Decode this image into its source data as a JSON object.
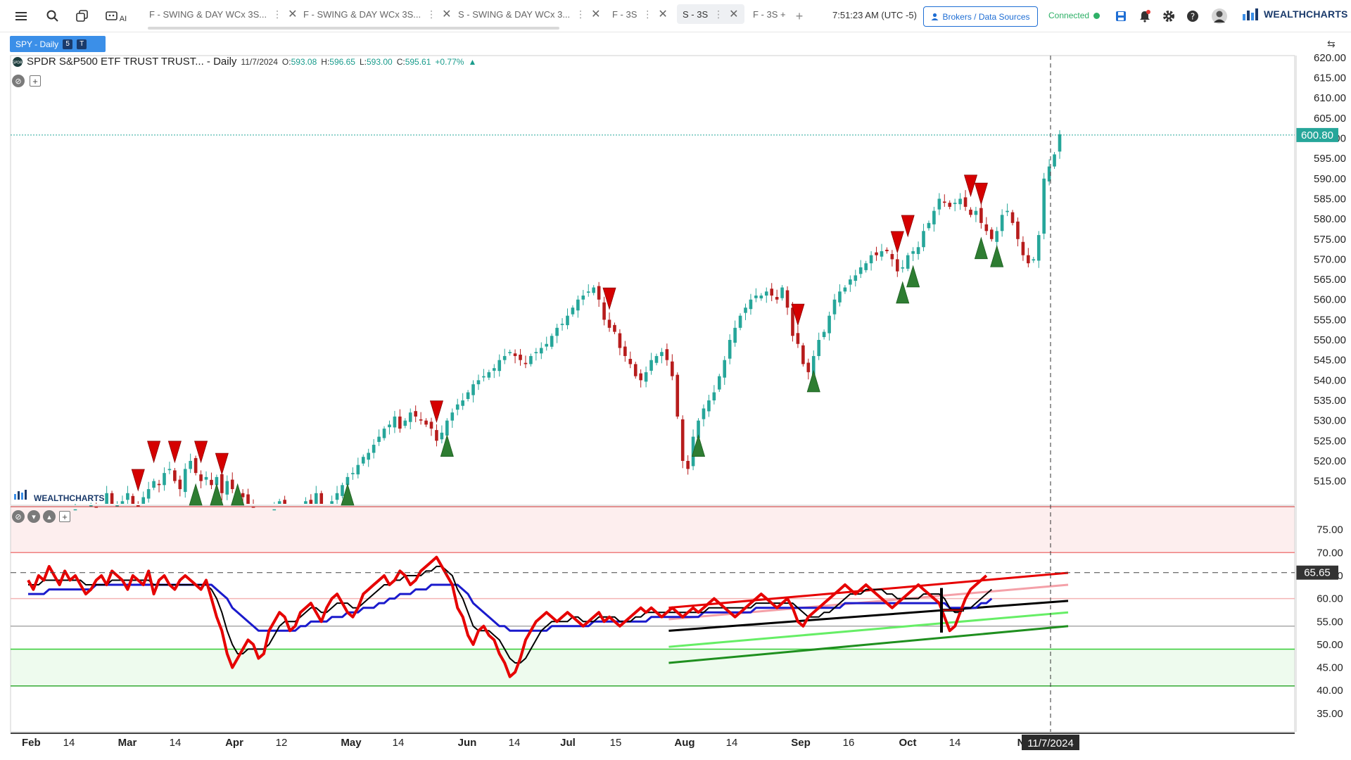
{
  "toolbar": {
    "tabs": [
      {
        "label": "F - SWING & DAY WCx 3S...",
        "active": false
      },
      {
        "label": "F - SWING & DAY WCx 3S...",
        "active": false
      },
      {
        "label": "S - SWING & DAY WCx 3...",
        "active": false
      },
      {
        "label": "F - 3S",
        "active": false
      },
      {
        "label": "S - 3S",
        "active": true
      },
      {
        "label": "F - 3S +",
        "active": false
      }
    ],
    "ai_label": "AI",
    "clock": "7:51:23 AM  (UTC -5)",
    "brokers_label": "Brokers / Data Sources",
    "connection": "Connected",
    "brand": "WEALTHCHARTS"
  },
  "symbol_badge": {
    "label": "SPY - Daily",
    "badge1": "5",
    "badge2": "T"
  },
  "legend": {
    "name": "SPDR S&P500 ETF TRUST TRUST... - Daily",
    "date": "11/7/2024",
    "o_label": "O:",
    "o": "593.08",
    "h_label": "H:",
    "h": "596.65",
    "l_label": "L:",
    "l": "593.00",
    "c_label": "C:",
    "c": "595.61",
    "change": "+0.77%"
  },
  "watermark": "WEALTHCHARTS",
  "colors": {
    "up": "#26a69a",
    "down": "#b71c1c",
    "sell_arrow": "#d50000",
    "buy_arrow": "#2e7d32",
    "rsi": "#e60000",
    "signal_fast": "#000000",
    "signal_slow": "#1a1acc",
    "upper_zone": "#fdeeee",
    "lower_zone": "#eefbee",
    "price_tag": "#26a69a"
  },
  "chart_data": [
    {
      "type": "candlestick",
      "title": "SPDR S&P500 ETF TRUST TRUST... - Daily",
      "x_labels": [
        "Feb",
        "14",
        "Mar",
        "14",
        "Apr",
        "12",
        "May",
        "14",
        "Jun",
        "14",
        "Jul",
        "15",
        "Aug",
        "14",
        "Sep",
        "16",
        "Oct",
        "14",
        "N"
      ],
      "y_ticks": [
        515,
        520,
        525,
        530,
        535,
        540,
        545,
        550,
        555,
        560,
        565,
        570,
        575,
        580,
        585,
        590,
        595,
        600,
        605,
        610,
        615,
        620
      ],
      "ylim": [
        509,
        620.5
      ],
      "last_price": 600.8,
      "crosshair_date": "11/7/2024",
      "series": [
        {
          "name": "SPY",
          "close": [
            501,
            503,
            502,
            505,
            500,
            498,
            499,
            497,
            504,
            508,
            507,
            506,
            509,
            505,
            503,
            512,
            508,
            509,
            510,
            512,
            509,
            508,
            511,
            513,
            515,
            514,
            517,
            518,
            515,
            513,
            518,
            520,
            517,
            515,
            516,
            514,
            516,
            512,
            515,
            513,
            512,
            511,
            509,
            507,
            505,
            505,
            506,
            508,
            510,
            507,
            504,
            505,
            508,
            510,
            509,
            512,
            507,
            503,
            510,
            512,
            514,
            516,
            517,
            519,
            521,
            522,
            524,
            526,
            528,
            529,
            531,
            528,
            530,
            532,
            531,
            530,
            529,
            528,
            525,
            527,
            530,
            532,
            534,
            535,
            537,
            539,
            540,
            541,
            542,
            543,
            545,
            546,
            547,
            546,
            545,
            544,
            546,
            547,
            548,
            549,
            551,
            553,
            554,
            556,
            558,
            560,
            561,
            562,
            563,
            560,
            555,
            553,
            552,
            548,
            546,
            544,
            541,
            540,
            542,
            545,
            546,
            547,
            545,
            541,
            531,
            520,
            518,
            526,
            530,
            533,
            535,
            537,
            541,
            545,
            550,
            553,
            556,
            558,
            560,
            561,
            561,
            562,
            561,
            560,
            563,
            558,
            551,
            549,
            544,
            542,
            546,
            550,
            552,
            556,
            560,
            562,
            563,
            565,
            566,
            568,
            569,
            571,
            571,
            572,
            572,
            570,
            567,
            568,
            571,
            572,
            573,
            577,
            579,
            582,
            585,
            584,
            583,
            584,
            585,
            583,
            581,
            582,
            579,
            577,
            575,
            577,
            581,
            582,
            579,
            575,
            571,
            569,
            570,
            576,
            590,
            593,
            596,
            601
          ]
        }
      ],
      "sell_signals": [
        "Mar 4",
        "Mar 8",
        "Mar 14",
        "Mar 22",
        "Mar 28",
        "May 28",
        "Jul 17",
        "Sep 6",
        "Oct 7",
        "Oct 10",
        "Oct 28",
        "Nov 1"
      ],
      "buy_signals": [
        "Mar 20",
        "Mar 26",
        "Apr 3",
        "May 2",
        "May 31",
        "Aug 12",
        "Sep 10",
        "Oct 9",
        "Oct 11",
        "Oct 31",
        "Nov 6"
      ]
    },
    {
      "type": "line",
      "title": "RSI",
      "y_ticks": [
        35,
        40,
        45,
        50,
        55,
        60,
        65,
        70,
        75
      ],
      "ylim": [
        31,
        80
      ],
      "last_value": 65.65,
      "zones": {
        "overbought": [
          70,
          80
        ],
        "oversold": [
          41,
          49
        ]
      },
      "series": [
        {
          "name": "RSI",
          "values": [
            64,
            62,
            65,
            64,
            67,
            65,
            63,
            66,
            64,
            65,
            63,
            61,
            62,
            64,
            65,
            63,
            66,
            65,
            64,
            62,
            65,
            64,
            63,
            66,
            61,
            64,
            65,
            63,
            62,
            64,
            65,
            64,
            63,
            62,
            64,
            60,
            56,
            53,
            48,
            45,
            47,
            49,
            51,
            50,
            47,
            48,
            53,
            55,
            57,
            56,
            53,
            54,
            57,
            58,
            59,
            57,
            55,
            58,
            60,
            61,
            59,
            57,
            56,
            58,
            61,
            62,
            63,
            64,
            65,
            63,
            64,
            66,
            65,
            63,
            64,
            66,
            67,
            68,
            69,
            67,
            65,
            63,
            58,
            56,
            52,
            50,
            53,
            54,
            52,
            51,
            48,
            46,
            43,
            44,
            47,
            51,
            53,
            55,
            56,
            57,
            56,
            55,
            56,
            57,
            56,
            55,
            54,
            55,
            56,
            57,
            55,
            56,
            55,
            54,
            55,
            56,
            57,
            58,
            57,
            58,
            57,
            56,
            57,
            58,
            57,
            56,
            57,
            58,
            57,
            58,
            59,
            60,
            59,
            58,
            57,
            56,
            57,
            58,
            59,
            60,
            61,
            60,
            59,
            58,
            59,
            60,
            58,
            55,
            54,
            56,
            57,
            58,
            59,
            60,
            61,
            62,
            63,
            62,
            61,
            62,
            63,
            62,
            61,
            60,
            59,
            58,
            59,
            60,
            61,
            62,
            63,
            62,
            61,
            60,
            59,
            56,
            53,
            54,
            57,
            60,
            62,
            63,
            64,
            65
          ]
        },
        {
          "name": "Fast signal",
          "values": [
            63,
            63,
            63,
            64,
            64,
            64,
            64,
            64,
            64,
            64,
            64,
            63,
            63,
            63,
            63,
            63,
            64,
            64,
            64,
            64,
            64,
            64,
            64,
            64,
            63,
            63,
            63,
            63,
            63,
            63,
            63,
            63,
            63,
            63,
            63,
            62,
            60,
            57,
            53,
            50,
            48,
            48,
            49,
            49,
            49,
            49,
            50,
            52,
            54,
            55,
            55,
            55,
            56,
            57,
            58,
            58,
            57,
            57,
            58,
            59,
            59,
            59,
            58,
            58,
            59,
            60,
            61,
            62,
            63,
            63,
            64,
            64,
            65,
            65,
            65,
            65,
            66,
            66,
            67,
            67,
            66,
            65,
            62,
            60,
            57,
            54,
            53,
            53,
            53,
            52,
            51,
            49,
            47,
            46,
            46,
            47,
            49,
            51,
            53,
            54,
            55,
            55,
            55,
            55,
            56,
            56,
            55,
            55,
            55,
            56,
            56,
            56,
            56,
            55,
            55,
            55,
            56,
            56,
            57,
            57,
            57,
            57,
            57,
            57,
            57,
            57,
            57,
            57,
            57,
            57,
            58,
            58,
            58,
            58,
            58,
            58,
            58,
            58,
            58,
            59,
            59,
            59,
            59,
            59,
            59,
            59,
            59,
            58,
            57,
            56,
            56,
            56,
            57,
            57,
            58,
            59,
            60,
            61,
            61,
            61,
            62,
            62,
            62,
            62,
            61,
            61,
            60,
            60,
            60,
            60,
            60,
            61,
            61,
            61,
            61,
            60,
            58,
            57,
            57,
            58,
            58,
            59,
            60,
            61,
            62
          ]
        },
        {
          "name": "Slow signal",
          "values": [
            61,
            61,
            61,
            61,
            62,
            62,
            62,
            62,
            62,
            62,
            62,
            62,
            62,
            63,
            63,
            63,
            63,
            63,
            63,
            63,
            63,
            63,
            63,
            63,
            63,
            63,
            63,
            63,
            63,
            63,
            63,
            63,
            63,
            63,
            63,
            63,
            62,
            61,
            60,
            58,
            57,
            56,
            55,
            54,
            53,
            53,
            53,
            53,
            53,
            53,
            53,
            53,
            54,
            54,
            55,
            55,
            55,
            55,
            56,
            56,
            56,
            57,
            57,
            57,
            58,
            58,
            58,
            59,
            59,
            60,
            60,
            61,
            61,
            61,
            62,
            62,
            62,
            63,
            63,
            63,
            63,
            63,
            63,
            62,
            61,
            59,
            58,
            57,
            56,
            55,
            54,
            54,
            53,
            53,
            53,
            53,
            53,
            53,
            53,
            53,
            54,
            54,
            54,
            54,
            54,
            54,
            54,
            54,
            55,
            55,
            55,
            55,
            55,
            55,
            55,
            55,
            55,
            55,
            55,
            56,
            56,
            56,
            56,
            56,
            56,
            56,
            56,
            56,
            56,
            57,
            57,
            57,
            57,
            57,
            57,
            57,
            57,
            57,
            57,
            58,
            58,
            58,
            58,
            58,
            58,
            58,
            58,
            58,
            58,
            58,
            58,
            58,
            58,
            58,
            58,
            58,
            59,
            59,
            59,
            59,
            59,
            59,
            59,
            59,
            59,
            59,
            59,
            59,
            59,
            59,
            59,
            59,
            59,
            59,
            59,
            59,
            58,
            58,
            58,
            58,
            58,
            58,
            59,
            59,
            60
          ]
        }
      ],
      "trendlines": [
        {
          "color": "#e60000",
          "from": 58.0,
          "to": 65.6
        },
        {
          "color": "#f4a0a8",
          "from": 55.5,
          "to": 63.0
        },
        {
          "color": "#000000",
          "from": 53.0,
          "to": 59.5
        },
        {
          "color": "#66ee66",
          "from": 49.5,
          "to": 57.0
        },
        {
          "color": "#1f8f1f",
          "from": 46.0,
          "to": 54.0
        }
      ]
    }
  ]
}
